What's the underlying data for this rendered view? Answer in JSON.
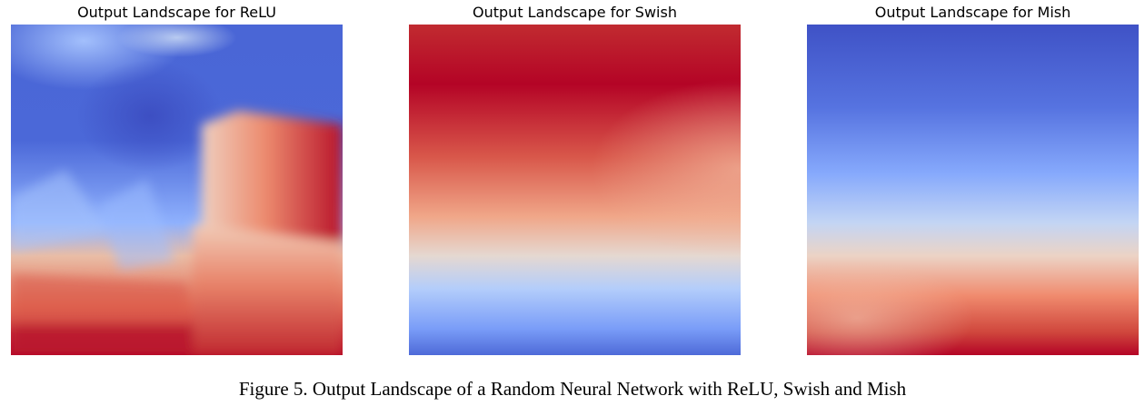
{
  "figure": {
    "caption": "Figure 5. Output Landscape of a Random Neural Network with ReLU, Swish and Mish"
  },
  "chart_data": [
    {
      "type": "heatmap",
      "title": "Output Landscape for ReLU",
      "colormap": "coolwarm",
      "axes_visible": false
    },
    {
      "type": "heatmap",
      "title": "Output Landscape for Swish",
      "colormap": "coolwarm",
      "axes_visible": false
    },
    {
      "type": "heatmap",
      "title": "Output Landscape for Mish",
      "colormap": "coolwarm",
      "axes_visible": false
    }
  ],
  "colors": {
    "low": "#3b4cc0",
    "mid": "#dddcdc",
    "high": "#b40426"
  }
}
